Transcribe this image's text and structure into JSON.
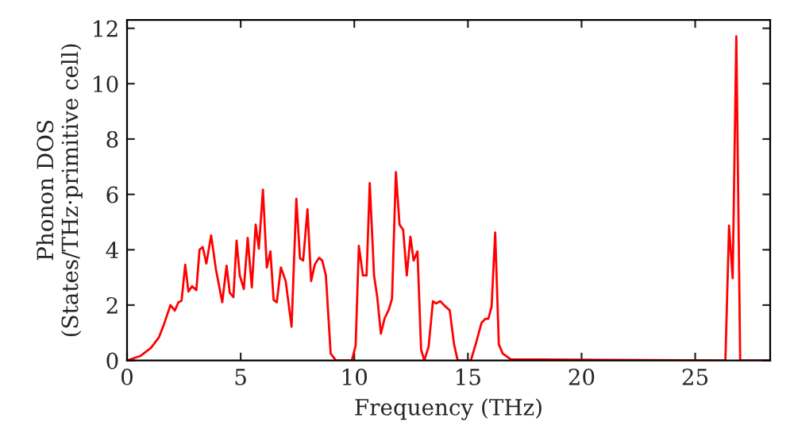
{
  "chart_data": {
    "type": "line",
    "xlabel": "Frequency (THz)",
    "ylabel": "Phonon DOS\n(States/THz·primitive cell)",
    "xlim": [
      0,
      28.3
    ],
    "ylim": [
      0,
      12.3
    ],
    "xticks": [
      0,
      5,
      10,
      15,
      20,
      25
    ],
    "yticks": [
      0,
      2,
      4,
      6,
      8,
      10,
      12
    ],
    "grid": false,
    "series": [
      {
        "color": "#ff0000",
        "x": [
          0,
          0.58,
          1.05,
          1.4,
          1.63,
          1.91,
          2.1,
          2.26,
          2.4,
          2.56,
          2.7,
          2.86,
          3.05,
          3.19,
          3.33,
          3.49,
          3.7,
          3.91,
          4.19,
          4.38,
          4.52,
          4.68,
          4.82,
          4.96,
          5.14,
          5.31,
          5.49,
          5.66,
          5.8,
          5.98,
          6.15,
          6.31,
          6.45,
          6.59,
          6.77,
          6.98,
          7.24,
          7.45,
          7.61,
          7.75,
          7.94,
          8.1,
          8.26,
          8.45,
          8.59,
          8.75,
          8.96,
          9.19,
          9.89,
          10.06,
          10.2,
          10.38,
          10.54,
          10.68,
          10.87,
          11.01,
          11.17,
          11.33,
          11.52,
          11.66,
          11.83,
          11.99,
          12.15,
          12.31,
          12.47,
          12.61,
          12.78,
          12.94,
          13.08,
          13.27,
          13.46,
          13.6,
          13.78,
          13.97,
          14.2,
          14.39,
          14.55,
          15.13,
          15.36,
          15.6,
          15.76,
          15.9,
          16.04,
          16.2,
          16.36,
          16.53,
          16.88,
          26.33,
          26.49,
          26.65,
          26.81,
          26.98,
          28.3
        ],
        "values": [
          0,
          0.16,
          0.45,
          0.83,
          1.32,
          2.0,
          1.8,
          2.1,
          2.16,
          3.46,
          2.49,
          2.68,
          2.54,
          4.0,
          4.1,
          3.5,
          4.52,
          3.3,
          2.1,
          3.42,
          2.45,
          2.29,
          4.33,
          3.07,
          2.58,
          4.43,
          2.64,
          4.91,
          4.04,
          6.17,
          3.36,
          3.94,
          2.19,
          2.1,
          3.36,
          2.87,
          1.22,
          5.84,
          3.69,
          3.61,
          5.46,
          2.87,
          3.46,
          3.71,
          3.61,
          3.07,
          0.25,
          0,
          0,
          0.54,
          4.14,
          3.07,
          3.07,
          6.41,
          3.07,
          2.29,
          0.97,
          1.51,
          1.84,
          2.23,
          6.8,
          4.91,
          4.72,
          3.07,
          4.47,
          3.61,
          3.94,
          0.39,
          0,
          0.5,
          2.14,
          2.06,
          2.14,
          1.98,
          1.81,
          0.58,
          0,
          0,
          0.64,
          1.36,
          1.5,
          1.51,
          1.94,
          4.62,
          0.58,
          0.25,
          0.04,
          0,
          4.87,
          2.97,
          11.71,
          0,
          0
        ]
      }
    ]
  }
}
